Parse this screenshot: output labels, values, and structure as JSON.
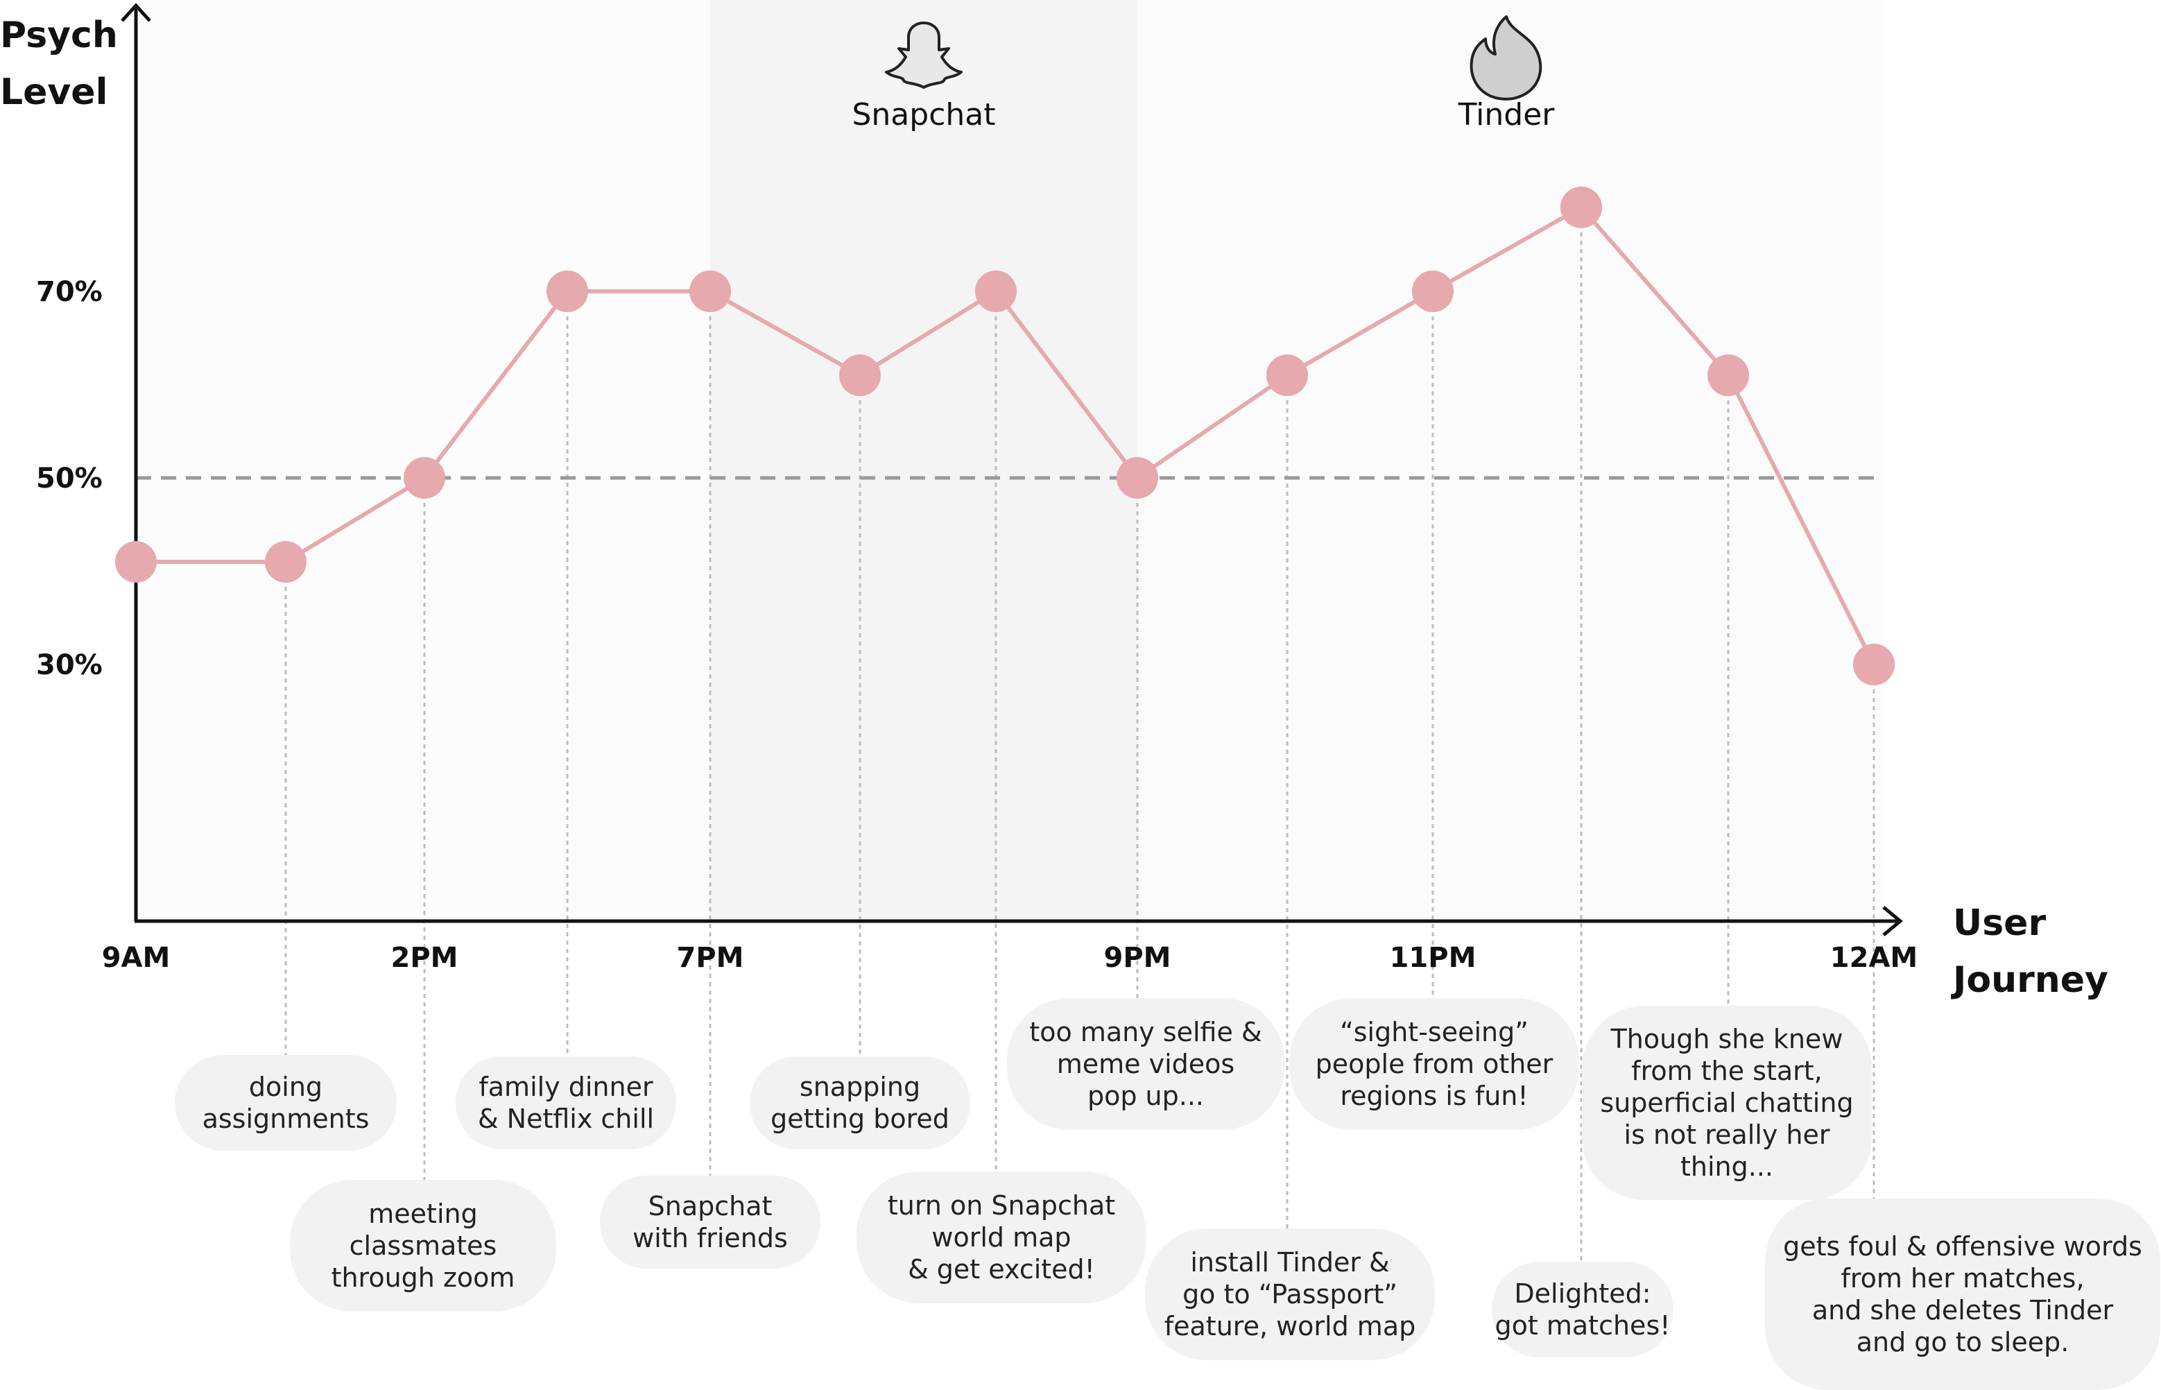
{
  "chart_data": {
    "type": "line",
    "ylabel": [
      "Psych",
      "Level"
    ],
    "xlabel": [
      "User",
      "Journey"
    ],
    "y_ticks": [
      {
        "label": "70%",
        "value": 70
      },
      {
        "label": "50%",
        "value": 50
      },
      {
        "label": "30%",
        "value": 30
      }
    ],
    "x_ticks": [
      {
        "label": "9AM",
        "index": 0
      },
      {
        "label": "2PM",
        "index": 2
      },
      {
        "label": "7PM",
        "index": 4
      },
      {
        "label": "9PM",
        "index": 7
      },
      {
        "label": "11PM",
        "index": 9
      },
      {
        "label": "12AM",
        "index": 12
      }
    ],
    "reference_line": {
      "value": 50,
      "style": "dashed"
    },
    "regions": [
      {
        "label": "Snapchat",
        "icon": "snapchat-ghost-icon",
        "from_index": 4,
        "to_index": 7,
        "shade": "#f4f4f4"
      },
      {
        "label": "Tinder",
        "icon": "tinder-flame-icon",
        "from_index": 7,
        "to_index": 12,
        "shade": "#fbfbfb"
      }
    ],
    "points": [
      {
        "value": 41,
        "caption": [
          "doing",
          "assignments"
        ]
      },
      {
        "value": 41,
        "caption": [
          "doing",
          "assignments"
        ]
      },
      {
        "value": 50,
        "caption": [
          "meeting",
          "classmates",
          "through zoom"
        ]
      },
      {
        "value": 70,
        "caption": [
          "family dinner",
          "& Netflix chill"
        ]
      },
      {
        "value": 70,
        "caption": [
          "Snapchat",
          "with friends"
        ]
      },
      {
        "value": 61,
        "caption": [
          "snapping",
          "getting bored"
        ]
      },
      {
        "value": 70,
        "caption": [
          "turn on Snapchat",
          "world map",
          "& get excited!"
        ]
      },
      {
        "value": 50,
        "caption": [
          "too many selfie &",
          "meme videos",
          "pop up..."
        ]
      },
      {
        "value": 61,
        "caption": [
          "install Tinder &",
          "go to “Passport”",
          "feature, world map"
        ]
      },
      {
        "value": 70,
        "caption": [
          "“sight-seeing”",
          "people from other",
          "regions is fun!"
        ]
      },
      {
        "value": 79,
        "caption": [
          "Delighted:",
          "got matches!"
        ]
      },
      {
        "value": 61,
        "caption": [
          "Though she knew",
          "from the start,",
          "superficial chatting",
          "is not really her",
          "thing..."
        ]
      },
      {
        "value": 30,
        "caption": [
          "gets foul & offensive words",
          "from her matches,",
          "and she deletes Tinder",
          "and go to sleep."
        ]
      }
    ],
    "colors": {
      "line": "#e6a9ad",
      "point": "#e6a9ad",
      "axis": "#111111",
      "reference": "#999999",
      "bubble": "#f2f2f2"
    }
  }
}
